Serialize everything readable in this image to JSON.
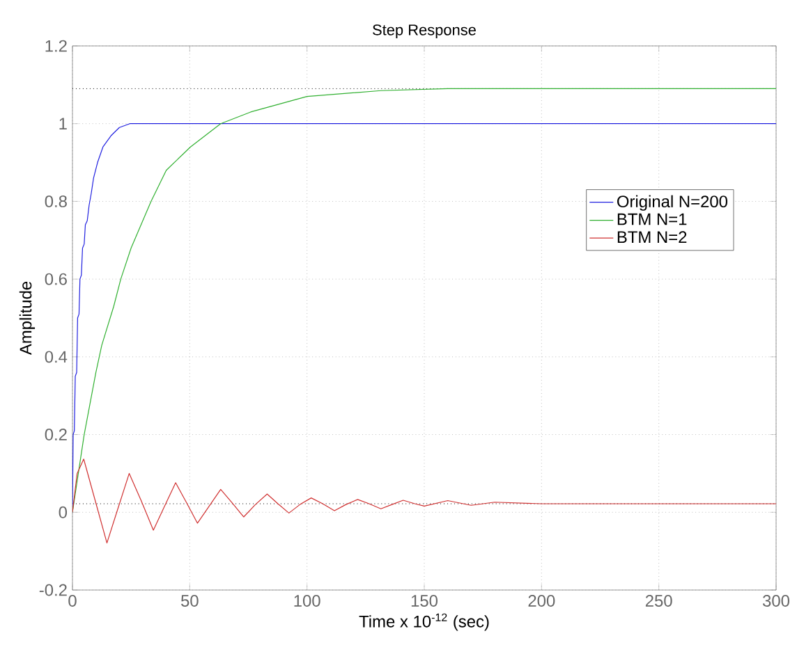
{
  "chart_data": {
    "type": "line",
    "title": "Step Response",
    "xlabel": "Time     x 10$^{-12}$  (sec)",
    "ylabel": "Amplitude",
    "xlim": [
      0,
      300
    ],
    "ylim": [
      -0.2,
      1.2
    ],
    "xticks": [
      0,
      50,
      100,
      150,
      200,
      250,
      300
    ],
    "yticks": [
      -0.2,
      0,
      0.2,
      0.4,
      0.6,
      0.8,
      1,
      1.2
    ],
    "grid": true,
    "legend": "right",
    "marker": "none",
    "line_style": "solid",
    "ref_lines": [
      {
        "axis": "y",
        "value": 1.09,
        "color": "#000000",
        "line_style": "dotted"
      },
      {
        "axis": "y",
        "value": 0.022,
        "color": "#000000",
        "line_style": "dotted"
      }
    ],
    "series": [
      {
        "name": "Original N=200",
        "color": "#2020e0",
        "x": [
          0,
          0.3,
          0.8,
          1.2,
          1.8,
          2.2,
          2.8,
          3.2,
          3.8,
          4.3,
          5,
          5.5,
          6.3,
          7.1,
          8,
          9,
          10.7,
          13,
          16.6,
          20,
          24.5,
          300
        ],
        "values": [
          0,
          0.2,
          0.21,
          0.35,
          0.36,
          0.5,
          0.51,
          0.6,
          0.61,
          0.68,
          0.69,
          0.74,
          0.75,
          0.79,
          0.82,
          0.86,
          0.9,
          0.94,
          0.97,
          0.99,
          1.0,
          1.0
        ]
      },
      {
        "name": "BTM N=1",
        "color": "#30b030",
        "x": [
          0,
          2.5,
          5,
          10,
          12.5,
          17.6,
          20.6,
          25,
          33.5,
          40,
          50.3,
          63.2,
          76,
          100,
          131.5,
          160,
          200,
          300
        ],
        "values": [
          0,
          0.1,
          0.2,
          0.36,
          0.43,
          0.53,
          0.6,
          0.68,
          0.8,
          0.88,
          0.94,
          1.0,
          1.03,
          1.07,
          1.085,
          1.09,
          1.09,
          1.09
        ]
      },
      {
        "name": "BTM N=2",
        "color": "#d03030",
        "x": [
          0,
          2,
          4.8,
          9.7,
          14.7,
          19.4,
          24.2,
          29.3,
          34.5,
          39.2,
          44,
          48.6,
          53.3,
          58.2,
          63.2,
          68,
          73,
          78,
          83,
          87.6,
          92.3,
          97,
          101.8,
          106.7,
          111.7,
          116.6,
          121.6,
          126.5,
          131.5,
          136.2,
          141,
          146,
          150,
          160,
          170,
          180,
          200,
          250,
          300
        ],
        "values": [
          0,
          0.1,
          0.137,
          0.03,
          -0.079,
          0.01,
          0.1,
          0.03,
          -0.046,
          0.015,
          0.076,
          0.025,
          -0.028,
          0.015,
          0.059,
          0.025,
          -0.012,
          0.02,
          0.047,
          0.022,
          -0.002,
          0.02,
          0.037,
          0.022,
          0.004,
          0.02,
          0.033,
          0.022,
          0.009,
          0.02,
          0.031,
          0.022,
          0.016,
          0.03,
          0.018,
          0.026,
          0.022,
          0.022,
          0.022
        ]
      }
    ]
  }
}
